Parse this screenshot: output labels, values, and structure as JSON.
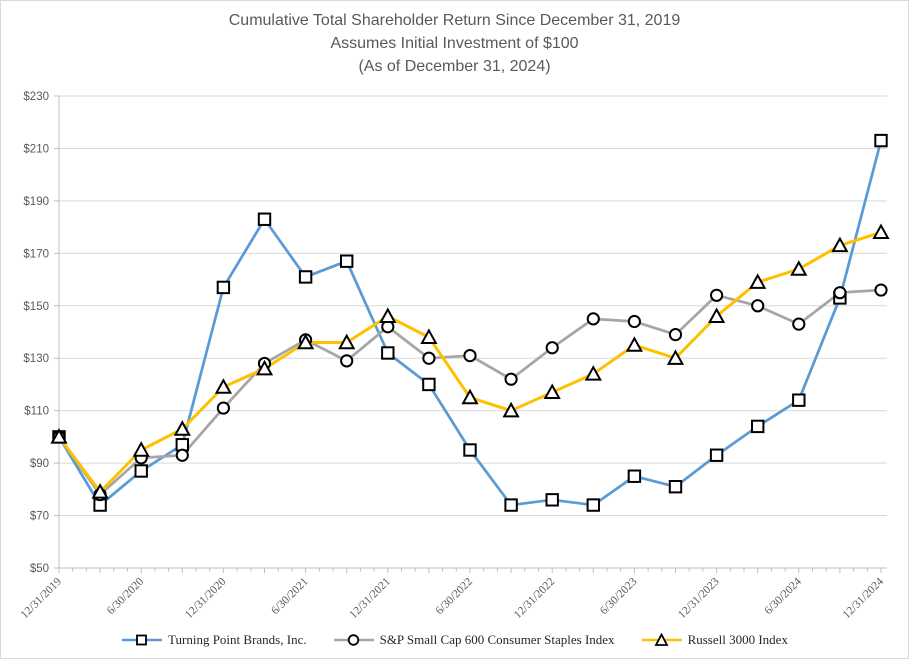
{
  "title": {
    "line1": "Cumulative Total Shareholder Return Since December 31, 2019",
    "line2": "Assumes Initial Investment of $100",
    "line3": "(As of December 31, 2024)"
  },
  "colors": {
    "title_text": "#595959",
    "axis_text": "#595959",
    "legend_text": "#262626",
    "gridline": "#d9d9d9",
    "axis_line": "#bfbfbf",
    "marker_outline": "#000000",
    "tpb_blue": "#5b9bd5",
    "sp600_gray": "#a6a6a6",
    "russell_gold": "#ffc000"
  },
  "chart_data": {
    "type": "line",
    "title": "Cumulative Total Shareholder Return Since December 31, 2019",
    "subtitle": "Assumes Initial Investment of $100 (As of December 31, 2024)",
    "x": [
      "12/31/2019",
      "3/31/2020",
      "6/30/2020",
      "9/30/2020",
      "12/31/2020",
      "3/31/2021",
      "6/30/2021",
      "9/30/2021",
      "12/31/2021",
      "3/31/2022",
      "6/30/2022",
      "9/30/2022",
      "12/31/2022",
      "3/31/2023",
      "6/30/2023",
      "9/30/2023",
      "12/31/2023",
      "3/31/2024",
      "6/30/2024",
      "9/30/2024",
      "12/31/2024"
    ],
    "x_tick_labels_shown": [
      "12/31/2019",
      "6/30/2020",
      "12/31/2020",
      "6/30/2021",
      "12/31/2021",
      "6/30/2022",
      "12/31/2022",
      "6/30/2023",
      "12/31/2023",
      "6/30/2024",
      "12/31/2024"
    ],
    "series": [
      {
        "name": "Turning Point Brands, Inc.",
        "marker": "square",
        "color": "#5b9bd5",
        "values": [
          100,
          74,
          87,
          97,
          157,
          183,
          161,
          167,
          132,
          120,
          95,
          74,
          76,
          74,
          85,
          81,
          93,
          104,
          114,
          153,
          213
        ]
      },
      {
        "name": "S&P Small Cap 600 Consumer Staples Index",
        "marker": "circle",
        "color": "#a6a6a6",
        "values": [
          100,
          78,
          92,
          93,
          111,
          128,
          137,
          129,
          142,
          130,
          131,
          122,
          134,
          145,
          144,
          139,
          154,
          150,
          143,
          155,
          156
        ]
      },
      {
        "name": "Russell 3000 Index",
        "marker": "triangle",
        "color": "#ffc000",
        "values": [
          100,
          79,
          95,
          103,
          119,
          126,
          136,
          136,
          146,
          138,
          115,
          110,
          117,
          124,
          135,
          130,
          146,
          159,
          164,
          173,
          178
        ]
      }
    ],
    "ylim": [
      50,
      230
    ],
    "y_tick_step": 20,
    "y_tick_prefix": "$",
    "grid": "horizontal",
    "legend_position": "bottom"
  }
}
